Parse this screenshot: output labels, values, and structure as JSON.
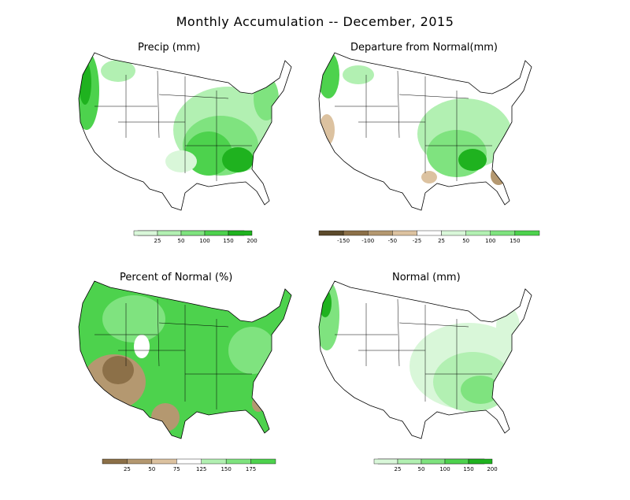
{
  "title": "Monthly Accumulation -- December, 2015",
  "colors": {
    "g1": "#d9f7d9",
    "g2": "#b2f0b2",
    "g3": "#7fe37f",
    "g4": "#4dd24d",
    "g5": "#1fb21f",
    "g6": "#0a8a0a",
    "b1": "#dcc2a0",
    "b2": "#b49870",
    "b3": "#8c7048",
    "b4": "#5c4a2c",
    "line": "#000000",
    "ocean": "#ffffff"
  },
  "panels": [
    {
      "id": "precip",
      "title": "Precip (mm)",
      "colorbar": {
        "labels": [
          "25",
          "50",
          "100",
          "150",
          "200"
        ],
        "colors": [
          "#d9f7d9",
          "#b2f0b2",
          "#7fe37f",
          "#4dd24d",
          "#1fb21f"
        ]
      }
    },
    {
      "id": "departure",
      "title": "Departure from Normal(mm)",
      "colorbar": {
        "labels": [
          "-150",
          "-100",
          "-50",
          "-25",
          "25",
          "50",
          "100",
          "150"
        ],
        "colors": [
          "#5c4a2c",
          "#8c7048",
          "#b49870",
          "#dcc2a0",
          "#ffffff",
          "#d9f7d9",
          "#b2f0b2",
          "#7fe37f",
          "#4dd24d"
        ]
      }
    },
    {
      "id": "percent",
      "title": "Percent of Normal (%)",
      "colorbar": {
        "labels": [
          "25",
          "50",
          "75",
          "125",
          "150",
          "175"
        ],
        "colors": [
          "#8c7048",
          "#b49870",
          "#dcc2a0",
          "#ffffff",
          "#b2f0b2",
          "#7fe37f",
          "#4dd24d"
        ]
      }
    },
    {
      "id": "normal",
      "title": "Normal (mm)",
      "colorbar": {
        "labels": [
          "25",
          "50",
          "100",
          "150",
          "200"
        ],
        "colors": [
          "#d9f7d9",
          "#b2f0b2",
          "#7fe37f",
          "#4dd24d",
          "#1fb21f"
        ]
      }
    }
  ]
}
